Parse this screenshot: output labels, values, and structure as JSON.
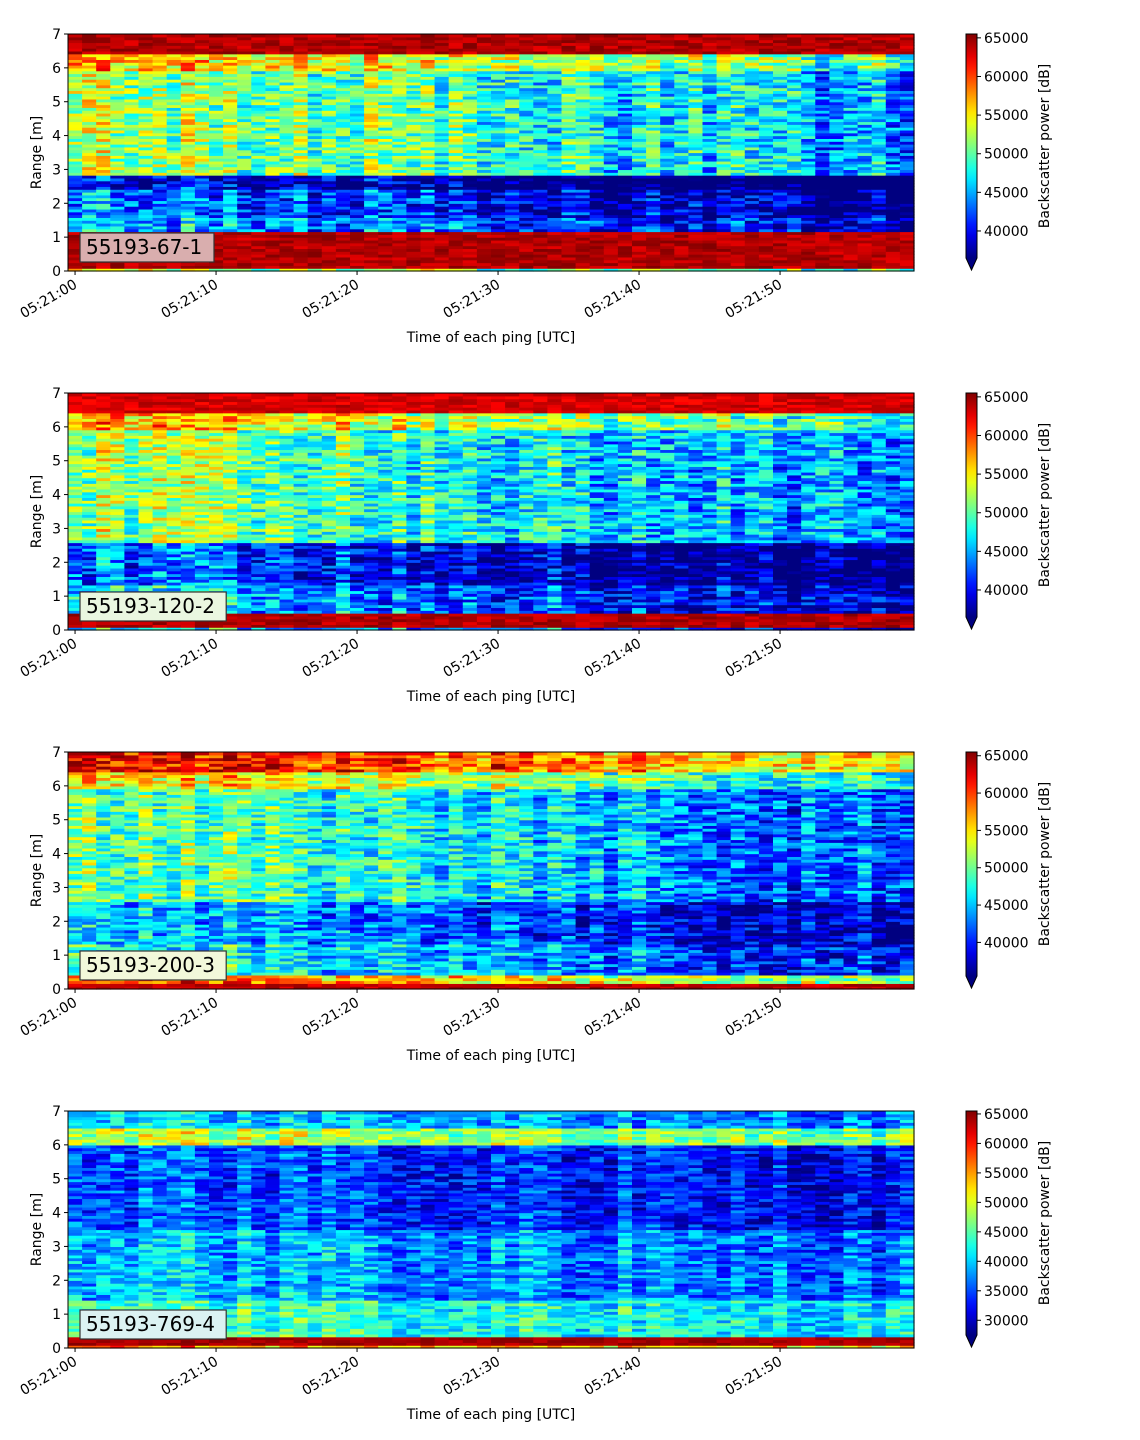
{
  "chart_data": [
    {
      "type": "heatmap",
      "label_box": "55193-67-1",
      "label_box_color": "#d9aeae",
      "xlabel": "Time of each ping [UTC]",
      "ylabel": "Range [m]",
      "x_ticks": [
        "05:21:00",
        "05:21:10",
        "05:21:20",
        "05:21:30",
        "05:21:40",
        "05:21:50"
      ],
      "x_range": [
        "05:21:00",
        "05:21:59"
      ],
      "y_ticks": [
        0,
        1,
        2,
        3,
        4,
        5,
        6,
        7
      ],
      "ylim": [
        0,
        7
      ],
      "colorbar_label": "Backscatter power [dB]",
      "colorbar_ticks": [
        40000,
        45000,
        50000,
        55000,
        60000,
        65000
      ],
      "colorbar_range": [
        36500,
        65500
      ],
      "colorbar_extend": "min",
      "colormap": "jet",
      "profile_bands": [
        {
          "ymin": 0.0,
          "ymax": 0.1,
          "value": 56000
        },
        {
          "ymin": 0.1,
          "ymax": 1.15,
          "value": 65500
        },
        {
          "ymin": 1.15,
          "ymax": 1.6,
          "value": 47000
        },
        {
          "ymin": 1.6,
          "ymax": 2.4,
          "value": 45000
        },
        {
          "ymin": 2.4,
          "ymax": 2.8,
          "value": 41000
        },
        {
          "ymin": 2.8,
          "ymax": 5.9,
          "value": 53500
        },
        {
          "ymin": 5.9,
          "ymax": 6.4,
          "value": 58000
        },
        {
          "ymin": 6.4,
          "ymax": 7.0,
          "value": 65500
        }
      ],
      "trend": -9000
    },
    {
      "type": "heatmap",
      "label_box": "55193-120-2",
      "label_box_color": "#eaf7e0",
      "xlabel": "Time of each ping [UTC]",
      "ylabel": "Range [m]",
      "x_ticks": [
        "05:21:00",
        "05:21:10",
        "05:21:20",
        "05:21:30",
        "05:21:40",
        "05:21:50"
      ],
      "x_range": [
        "05:21:00",
        "05:21:59"
      ],
      "y_ticks": [
        0,
        1,
        2,
        3,
        4,
        5,
        6,
        7
      ],
      "ylim": [
        0,
        7
      ],
      "colorbar_label": "Backscatter power [dB]",
      "colorbar_ticks": [
        40000,
        45000,
        50000,
        55000,
        60000,
        65000
      ],
      "colorbar_range": [
        36500,
        65500
      ],
      "colorbar_extend": "min",
      "colormap": "jet",
      "profile_bands": [
        {
          "ymin": 0.0,
          "ymax": 0.1,
          "value": 48000
        },
        {
          "ymin": 0.1,
          "ymax": 0.5,
          "value": 65500
        },
        {
          "ymin": 0.5,
          "ymax": 1.3,
          "value": 47500
        },
        {
          "ymin": 1.3,
          "ymax": 2.6,
          "value": 44000
        },
        {
          "ymin": 2.6,
          "ymax": 5.9,
          "value": 52500
        },
        {
          "ymin": 5.9,
          "ymax": 6.4,
          "value": 57500
        },
        {
          "ymin": 6.4,
          "ymax": 7.0,
          "value": 64500
        }
      ],
      "trend": -9000
    },
    {
      "type": "heatmap",
      "label_box": "55193-200-3",
      "label_box_color": "#f2f8da",
      "xlabel": "Time of each ping [UTC]",
      "ylabel": "Range [m]",
      "x_ticks": [
        "05:21:00",
        "05:21:10",
        "05:21:20",
        "05:21:30",
        "05:21:40",
        "05:21:50"
      ],
      "x_range": [
        "05:21:00",
        "05:21:59"
      ],
      "y_ticks": [
        0,
        1,
        2,
        3,
        4,
        5,
        6,
        7
      ],
      "ylim": [
        0,
        7
      ],
      "colorbar_label": "Backscatter power [dB]",
      "colorbar_ticks": [
        40000,
        45000,
        50000,
        55000,
        60000,
        65000
      ],
      "colorbar_range": [
        35500,
        65500
      ],
      "colorbar_extend": "min",
      "colormap": "jet",
      "profile_bands": [
        {
          "ymin": 0.0,
          "ymax": 0.15,
          "value": 65000
        },
        {
          "ymin": 0.15,
          "ymax": 0.4,
          "value": 60000
        },
        {
          "ymin": 0.4,
          "ymax": 1.3,
          "value": 49000
        },
        {
          "ymin": 1.3,
          "ymax": 2.6,
          "value": 46500
        },
        {
          "ymin": 2.6,
          "ymax": 5.9,
          "value": 51000
        },
        {
          "ymin": 5.9,
          "ymax": 6.4,
          "value": 56500
        },
        {
          "ymin": 6.4,
          "ymax": 7.0,
          "value": 63500
        }
      ],
      "trend": -10000
    },
    {
      "type": "heatmap",
      "label_box": "55193-769-4",
      "label_box_color": "#dbf2f2",
      "xlabel": "Time of each ping [UTC]",
      "ylabel": "Range [m]",
      "x_ticks": [
        "05:21:00",
        "05:21:10",
        "05:21:20",
        "05:21:30",
        "05:21:40",
        "05:21:50"
      ],
      "x_range": [
        "05:21:00",
        "05:21:59"
      ],
      "y_ticks": [
        0,
        1,
        2,
        3,
        4,
        5,
        6,
        7
      ],
      "ylim": [
        0,
        7
      ],
      "colorbar_label": "Backscatter power [dB]",
      "colorbar_ticks": [
        30000,
        35000,
        40000,
        45000,
        50000,
        55000,
        60000,
        65000
      ],
      "colorbar_range": [
        27500,
        65500
      ],
      "colorbar_extend": "min",
      "colormap": "jet",
      "profile_bands": [
        {
          "ymin": 0.0,
          "ymax": 0.1,
          "value": 56000
        },
        {
          "ymin": 0.1,
          "ymax": 0.3,
          "value": 65500
        },
        {
          "ymin": 0.3,
          "ymax": 1.4,
          "value": 45000
        },
        {
          "ymin": 1.4,
          "ymax": 3.5,
          "value": 40000
        },
        {
          "ymin": 3.5,
          "ymax": 6.0,
          "value": 36000
        },
        {
          "ymin": 6.0,
          "ymax": 6.5,
          "value": 50000
        },
        {
          "ymin": 6.5,
          "ymax": 7.0,
          "value": 41000
        }
      ],
      "trend": -4000
    }
  ]
}
